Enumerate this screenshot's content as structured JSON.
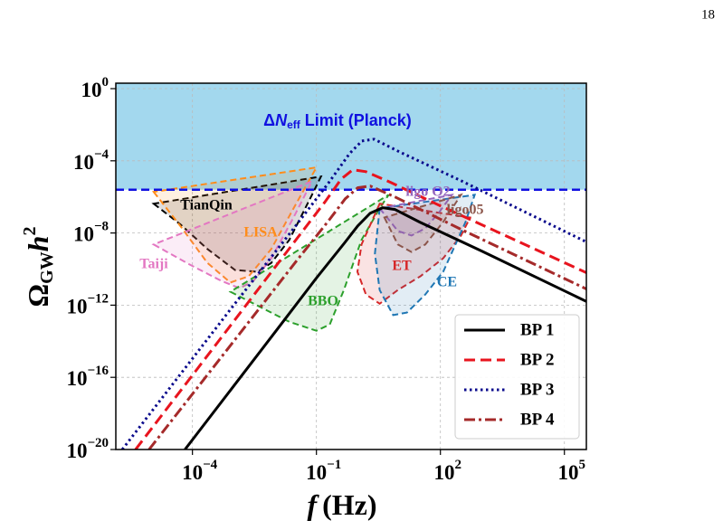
{
  "chart_data": {
    "type": "line",
    "page_number": "18",
    "xlabel": [
      "f",
      "(Hz)"
    ],
    "ylabel": [
      "Ω",
      "GW",
      "h",
      "2"
    ],
    "xscale": "log",
    "yscale": "log",
    "grid": true,
    "legend": "lower right",
    "xlim": [
      1.4e-06,
      340000.0
    ],
    "ylim": [
      1e-20,
      2
    ],
    "xticks": [
      {
        "value": 0.0001,
        "label": "10",
        "exponent": "−4"
      },
      {
        "value": 0.1,
        "label": "10",
        "exponent": "−1"
      },
      {
        "value": 100,
        "label": "10",
        "exponent": "2"
      },
      {
        "value": 100000,
        "label": "10",
        "exponent": "5"
      }
    ],
    "yticks": [
      {
        "value": 1,
        "label": "10",
        "exponent": "0"
      },
      {
        "value": 0.0001,
        "label": "10",
        "exponent": "−4"
      },
      {
        "value": 1e-08,
        "label": "10",
        "exponent": "−8"
      },
      {
        "value": 1e-12,
        "label": "10",
        "exponent": "−12"
      },
      {
        "value": 1e-16,
        "label": "10",
        "exponent": "−16"
      },
      {
        "value": 1e-20,
        "label": "10",
        "exponent": "−20"
      }
    ],
    "planck": {
      "label": [
        "Δ",
        "N",
        "eff",
        " Limit (Planck)"
      ],
      "value": 2.5e-06,
      "color": "#1010e0",
      "fill": "#a3d8ee"
    },
    "sensitivity_curves": [
      {
        "name": "TianQin",
        "color": "#000000",
        "x": [
          1.15e-05,
          5.2e-05,
          0.00023,
          0.00107,
          0.0038,
          0.0081,
          0.022,
          0.078,
          0.129
        ],
        "values": [
          4.2e-07,
          2.9e-08,
          1.3e-09,
          8.9e-11,
          7.1e-11,
          2.2e-10,
          4.1e-09,
          1.3e-06,
          1.35e-05
        ]
      },
      {
        "name": "LISA",
        "color": "#ff8c1a",
        "x": [
          1.15e-05,
          5.2e-05,
          0.00023,
          0.00083,
          0.0023,
          0.0081,
          0.028,
          0.1
        ],
        "values": [
          1.9e-06,
          2.3e-08,
          2.2e-10,
          1.8e-11,
          4e-11,
          1.3e-09,
          2.3e-07,
          4.3e-05
        ]
      },
      {
        "name": "Taiji",
        "color": "#e377c2",
        "x": [
          1.15e-05,
          8.5e-05,
          0.0005,
          0.0014,
          0.003,
          0.0081,
          0.028,
          0.078
        ],
        "values": [
          2.3e-09,
          1.8e-10,
          2.2e-11,
          8.7e-12,
          2.2e-11,
          4e-10,
          7.2e-08,
          7.4e-06
        ]
      },
      {
        "name": "BBO",
        "color": "#2ca02c",
        "x": [
          0.00083,
          0.0049,
          0.022,
          0.1,
          0.21,
          0.46,
          1.23,
          3.4,
          5.6
        ],
        "values": [
          5.5e-12,
          6.9e-13,
          1.2e-13,
          3.8e-14,
          8.5e-14,
          6.9e-12,
          4.1e-09,
          2.3e-07,
          1.3e-06
        ]
      },
      {
        "name": "ET",
        "color": "#d62728",
        "x": [
          3.4,
          1.23,
          0.98,
          1.58,
          3.4,
          9.3,
          33,
          117,
          316,
          525
        ],
        "values": [
          4.2e-07,
          2.3e-09,
          7.1e-11,
          3.9e-12,
          1.2e-12,
          6.9e-12,
          4e-11,
          4e-10,
          7.2e-09,
          7.2e-08
        ]
      },
      {
        "name": "CE",
        "color": "#1f77b4",
        "x": [
          3.4,
          2.6,
          3.4,
          7.2,
          15.5,
          43,
          117,
          407,
          676
        ],
        "values": [
          2.3e-07,
          7.1e-10,
          6.9e-12,
          2.8e-13,
          3.9e-13,
          3.9e-12,
          7.1e-11,
          4.1e-08,
          1.3e-06
        ]
      },
      {
        "name": "ligo O2",
        "color": "#9467bd",
        "x": [
          3.4,
          9.3,
          20,
          43,
          91,
          191
        ],
        "values": [
          2.3e-07,
          1.3e-08,
          7.2e-09,
          1.8e-08,
          1.3e-07,
          1.3e-06
        ]
      },
      {
        "name": "ligo05",
        "color": "#8c564b",
        "x": [
          4.4,
          9.3,
          20,
          43,
          117,
          316
        ],
        "values": [
          7.2e-08,
          2.3e-09,
          8.9e-10,
          2.3e-09,
          4.1e-08,
          1.3e-06
        ]
      }
    ],
    "series": [
      {
        "name": "BP 1",
        "color": "#000000",
        "style": "solid",
        "x": [
          6.6e-05,
          0.01,
          0.1,
          0.5,
          1,
          2,
          4,
          7.9,
          31.6,
          1000,
          340000.0
        ],
        "values": [
          1e-20,
          3.2e-14,
          3.2e-11,
          3.2e-09,
          2.5e-08,
          1.26e-07,
          2.5e-07,
          2e-07,
          4e-08,
          1e-09,
          1.6e-12
        ]
      },
      {
        "name": "BP 2",
        "color": "#e8141e",
        "style": "dashed",
        "x": [
          4.2e-06,
          0.001,
          0.0316,
          0.158,
          0.4,
          0.76,
          1.58,
          6.3,
          100,
          340000.0
        ],
        "values": [
          1e-20,
          1.26e-13,
          4e-09,
          5e-07,
          1e-05,
          3.2e-05,
          2.5e-05,
          6.3e-06,
          3.2e-07,
          6.3e-11
        ]
      },
      {
        "name": "BP 3",
        "color": "#0a0a8c",
        "style": "dotted",
        "x": [
          2e-06,
          0.001,
          0.0316,
          0.2,
          0.63,
          1.26,
          2.5,
          10,
          316,
          340000.0
        ],
        "values": [
          1e-20,
          1e-12,
          2.5e-08,
          6.3e-06,
          0.00025,
          0.00126,
          0.00158,
          0.00032,
          7.9e-06,
          3.2e-09
        ]
      },
      {
        "name": "BP 4",
        "color": "#a52a2a",
        "style": "dashdot",
        "x": [
          8.9e-06,
          0.001,
          0.0316,
          0.2,
          0.5,
          1,
          2,
          7.9,
          316,
          340000.0
        ],
        "values": [
          1e-20,
          1e-14,
          2.5e-10,
          5e-08,
          7.9e-07,
          3.2e-06,
          4e-06,
          1e-06,
          1.58e-08,
          7.9e-12
        ]
      }
    ]
  }
}
